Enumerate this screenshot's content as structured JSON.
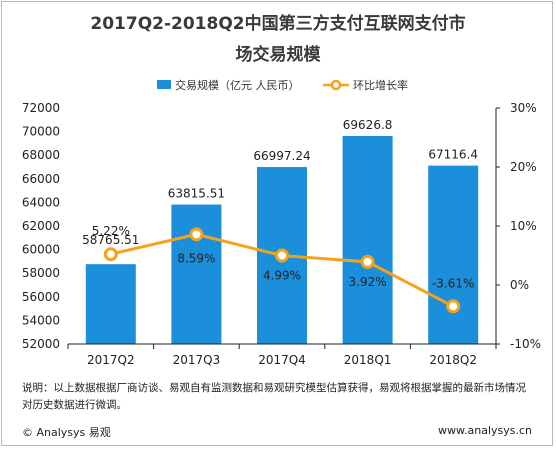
{
  "title_line1": "2017Q2-2018Q2中国第三方支付互联网支付市",
  "title_line2": "场交易规模",
  "note": "说明：以上数据根据厂商访谈、易观自有监测数据和易观研究模型估算获得，易观将根据掌握的最新市场情况对历史数据进行微调。",
  "footer_left": "© Analysys 易观",
  "footer_right": "www.analysys.cn",
  "colors": {
    "bar": "#1b8fd9",
    "line": "#f5a21b",
    "axis": "#222222"
  },
  "chart_data": {
    "type": "bar+line",
    "categories": [
      "2017Q2",
      "2017Q3",
      "2017Q4",
      "2018Q1",
      "2018Q2"
    ],
    "series": [
      {
        "name": "交易规模（亿元 人民币）",
        "type": "bar",
        "axis": "left",
        "values": [
          58765.51,
          63815.51,
          66997.24,
          69626.8,
          67116.4
        ],
        "labels": [
          "58765.51",
          "63815.51",
          "66997.24",
          "69626.8",
          "67116.4"
        ]
      },
      {
        "name": "环比增长率",
        "type": "line",
        "axis": "right",
        "values": [
          5.22,
          8.59,
          4.99,
          3.92,
          -3.61
        ],
        "labels": [
          "5.22%",
          "8.59%",
          "4.99%",
          "3.92%",
          "-3.61%"
        ]
      }
    ],
    "y_left": {
      "range": [
        52000,
        72000
      ],
      "ticks": [
        "52000",
        "54000",
        "56000",
        "58000",
        "60000",
        "62000",
        "64000",
        "66000",
        "68000",
        "70000",
        "72000"
      ]
    },
    "y_right": {
      "range": [
        -10,
        30
      ],
      "ticks": [
        "-10%",
        "0%",
        "10%",
        "20%",
        "30%"
      ]
    },
    "legend_position": "top"
  }
}
